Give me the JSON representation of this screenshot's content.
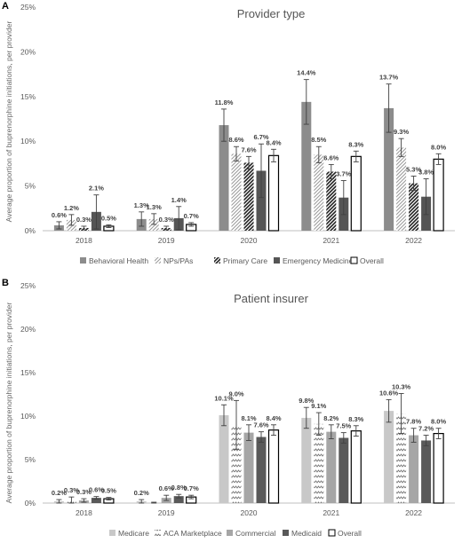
{
  "chart_data": [
    {
      "type": "bar",
      "panel_label": "A",
      "title": "Provider type",
      "ylabel": "Average proportion of buprenorphine initiations, per provider",
      "xlabel": "",
      "ylim": [
        0,
        25
      ],
      "ytick_labels": [
        "0%",
        "5%",
        "10%",
        "15%",
        "20%",
        "25%"
      ],
      "categories": [
        "2018",
        "2019",
        "2020",
        "2021",
        "2022"
      ],
      "legend_position": "bottom",
      "grid": false,
      "series": [
        {
          "name": "Behavioral Health",
          "pattern": "solid",
          "color": "#8c8c8c",
          "values": [
            0.6,
            1.3,
            11.8,
            14.4,
            13.7
          ],
          "errors": [
            0.4,
            0.8,
            1.8,
            2.5,
            2.7
          ],
          "labels": [
            "0.6%",
            "1.3%",
            "11.8%",
            "14.4%",
            "13.7%"
          ]
        },
        {
          "name": "NPs/PAs",
          "pattern": "light-diagonal",
          "color": "#8c8c8c",
          "values": [
            1.2,
            1.3,
            8.6,
            8.5,
            9.3
          ],
          "errors": [
            0.6,
            0.6,
            0.8,
            0.9,
            1.0
          ],
          "labels": [
            "1.2%",
            "1.3%",
            "8.6%",
            "8.5%",
            "9.3%"
          ]
        },
        {
          "name": "Primary Care",
          "pattern": "dark-diagonal",
          "color": "#333333",
          "values": [
            0.3,
            0.3,
            7.6,
            6.6,
            5.3
          ],
          "errors": [
            0.2,
            0.2,
            0.7,
            0.8,
            0.8
          ],
          "labels": [
            "0.3%",
            "0.3%",
            "7.6%",
            "6.6%",
            "5.3%"
          ]
        },
        {
          "name": "Emergency Medicine",
          "pattern": "solid",
          "color": "#555555",
          "values": [
            2.1,
            1.4,
            6.7,
            3.7,
            3.8
          ],
          "errors": [
            1.9,
            1.3,
            3.0,
            1.9,
            2.0
          ],
          "labels": [
            "2.1%",
            "1.4%",
            "6.7%",
            "3.7%",
            "3.8%"
          ]
        },
        {
          "name": "Overall",
          "pattern": "outline",
          "color": "#ffffff",
          "values": [
            0.5,
            0.7,
            8.4,
            8.3,
            8.0
          ],
          "errors": [
            0.15,
            0.2,
            0.7,
            0.6,
            0.6
          ],
          "labels": [
            "0.5%",
            "0.7%",
            "8.4%",
            "8.3%",
            "8.0%"
          ]
        }
      ]
    },
    {
      "type": "bar",
      "panel_label": "B",
      "title": "Patient insurer",
      "ylabel": "Average proportion of buprenorphine initiations, per provider",
      "xlabel": "",
      "ylim": [
        0,
        25
      ],
      "ytick_labels": [
        "0%",
        "5%",
        "10%",
        "15%",
        "20%",
        "25%"
      ],
      "categories": [
        "2018",
        "2019",
        "2020",
        "2021",
        "2022"
      ],
      "legend_position": "bottom",
      "grid": false,
      "series": [
        {
          "name": "Medicare",
          "pattern": "solid",
          "color": "#c8c8c8",
          "values": [
            0.2,
            0.2,
            10.1,
            9.8,
            10.6
          ],
          "errors": [
            0.2,
            0.2,
            1.2,
            1.2,
            1.3
          ],
          "labels": [
            "0.2%",
            "0.2%",
            "10.1%",
            "9.8%",
            "10.6%"
          ]
        },
        {
          "name": "ACA Marketplace",
          "pattern": "zigzag",
          "color": "#666666",
          "values": [
            0.3,
            0.0,
            9.0,
            9.1,
            10.3
          ],
          "errors": [
            0.4,
            0.1,
            2.8,
            1.3,
            2.3
          ],
          "labels": [
            "0.3%",
            "",
            "9.0%",
            "9.1%",
            "10.3%"
          ]
        },
        {
          "name": "Commercial",
          "pattern": "solid",
          "color": "#a6a6a6",
          "values": [
            0.3,
            0.6,
            8.1,
            8.2,
            7.8
          ],
          "errors": [
            0.2,
            0.3,
            0.9,
            0.8,
            0.8
          ],
          "labels": [
            "0.3%",
            "0.6%",
            "8.1%",
            "8.2%",
            "7.8%"
          ]
        },
        {
          "name": "Medicaid",
          "pattern": "solid",
          "color": "#595959",
          "values": [
            0.6,
            0.8,
            7.6,
            7.5,
            7.2
          ],
          "errors": [
            0.15,
            0.2,
            0.6,
            0.6,
            0.6
          ],
          "labels": [
            "0.6%",
            "0.8%",
            "7.6%",
            "7.5%",
            "7.2%"
          ]
        },
        {
          "name": "Overall",
          "pattern": "outline",
          "color": "#ffffff",
          "values": [
            0.5,
            0.7,
            8.4,
            8.3,
            8.0
          ],
          "errors": [
            0.15,
            0.2,
            0.6,
            0.6,
            0.6
          ],
          "labels": [
            "0.5%",
            "0.7%",
            "8.4%",
            "8.3%",
            "8.0%"
          ]
        }
      ]
    }
  ]
}
